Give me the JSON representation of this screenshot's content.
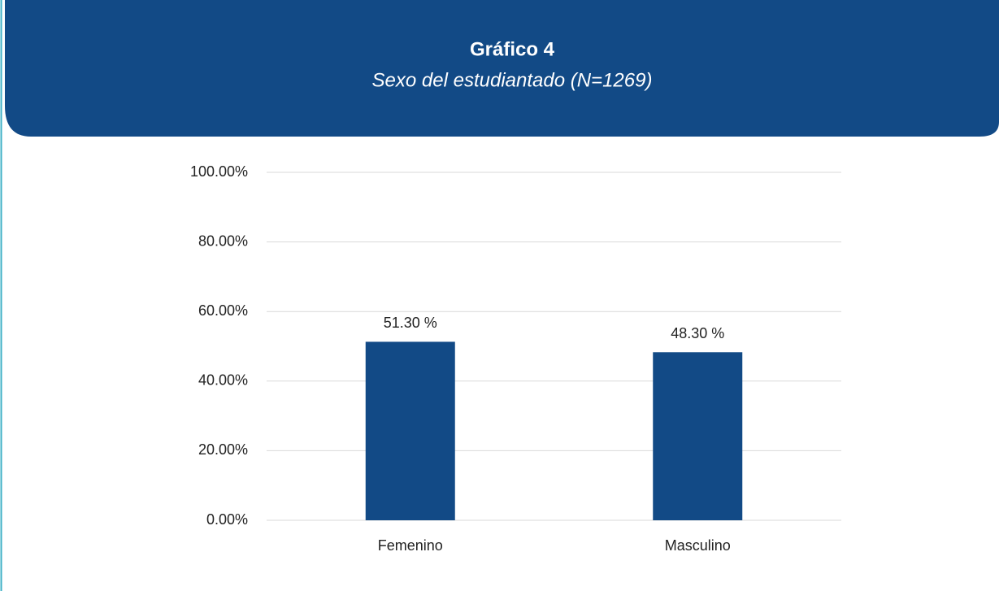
{
  "chart_data": {
    "type": "bar",
    "title": "Gráfico 4",
    "subtitle": "Sexo del estudiantado (N=1269)",
    "categories": [
      "Femenino",
      "Masculino"
    ],
    "values": [
      51.3,
      48.3
    ],
    "value_labels": [
      "51.30 %",
      "48.30 %"
    ],
    "color": "#124a86",
    "ylim": [
      0,
      100
    ],
    "yticks": [
      {
        "value": 0,
        "label": "0.00%"
      },
      {
        "value": 20,
        "label": "20.00%"
      },
      {
        "value": 40,
        "label": "40.00%"
      },
      {
        "value": 60,
        "label": "60.00%"
      },
      {
        "value": 80,
        "label": "80.00%"
      },
      {
        "value": 100,
        "label": "100.00%"
      }
    ],
    "grid": true
  }
}
